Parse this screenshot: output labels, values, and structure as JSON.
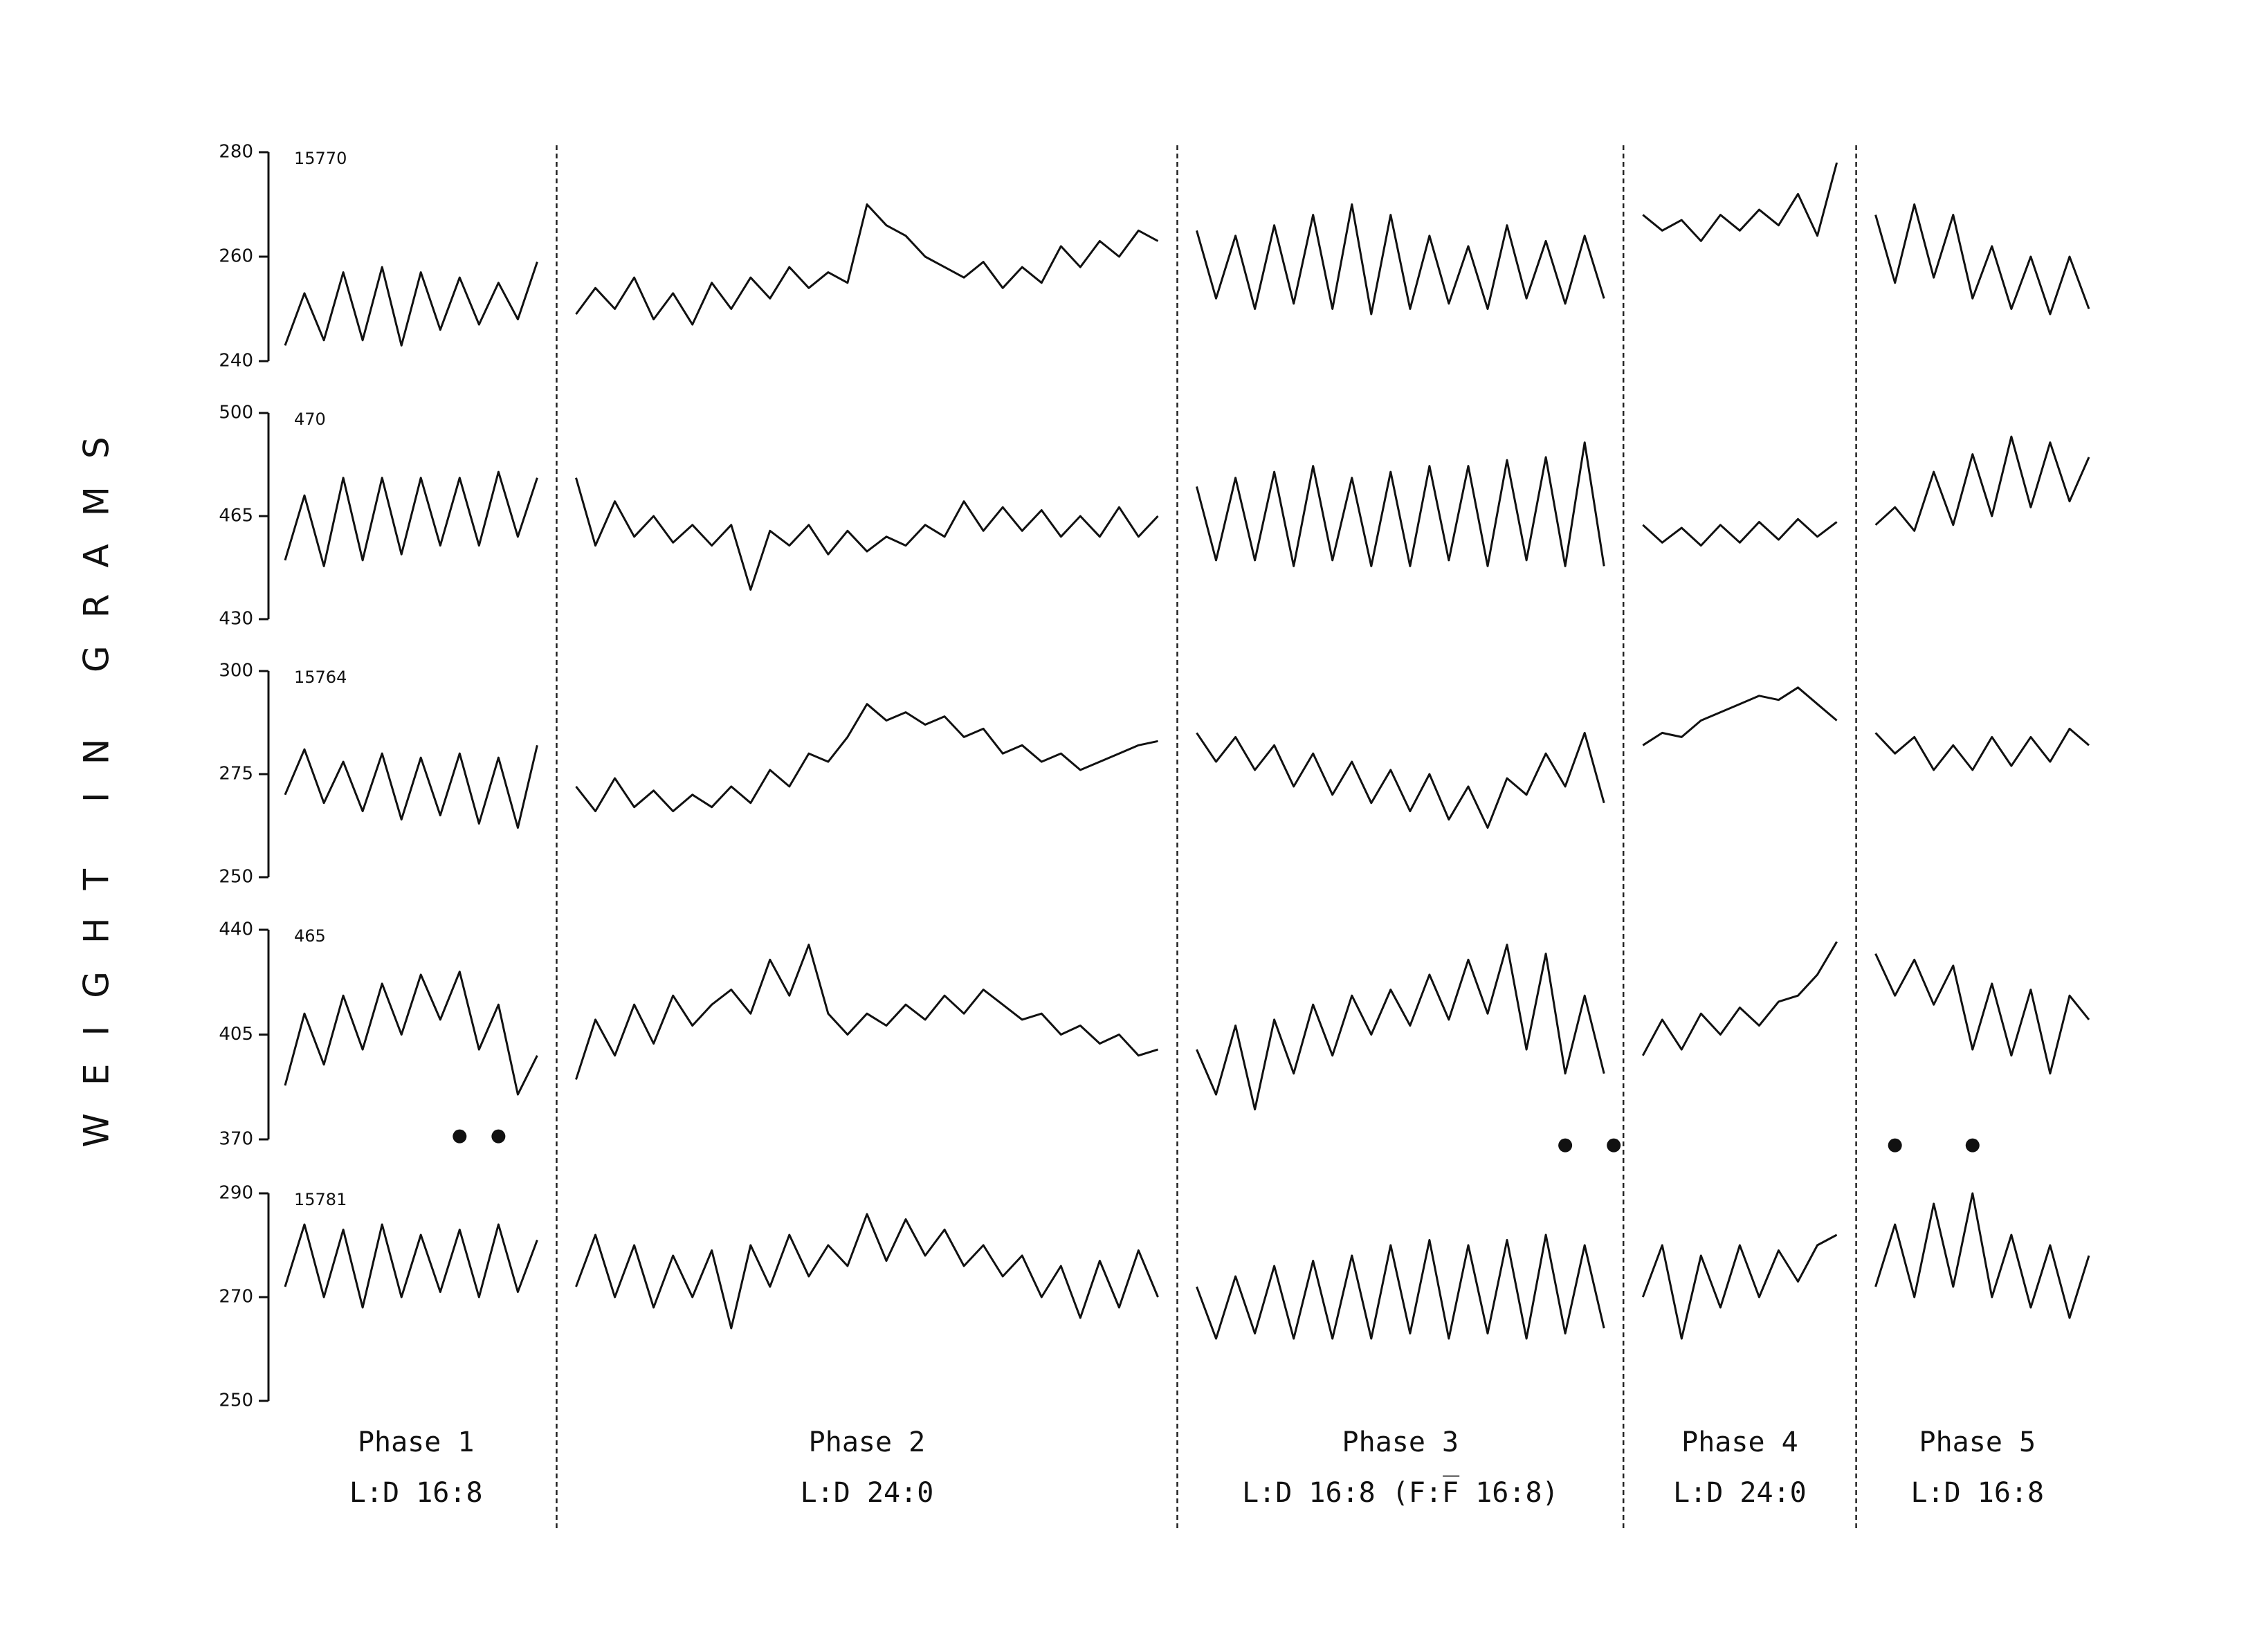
{
  "ylabel": "WEIGHT IN GRAMS",
  "xlim": [
    -0.5,
    93.5
  ],
  "boundaries": [
    14,
    46,
    69,
    81
  ],
  "phases": [
    {
      "label": "Phase 1",
      "condition": "L:D 16:8"
    },
    {
      "label": "Phase 2",
      "condition": "L:D 24:0"
    },
    {
      "label": "Phase 3",
      "condition": "L:D 16:8 (F:F̅ 16:8)"
    },
    {
      "label": "Phase 4",
      "condition": "L:D 24:0"
    },
    {
      "label": "Phase 5",
      "condition": "L:D 16:8"
    }
  ],
  "chart_data": [
    {
      "type": "line",
      "label": "15770",
      "color": "#111111",
      "ylim": [
        240,
        280
      ],
      "yticks": [
        240,
        260,
        280
      ],
      "values": [
        243,
        253,
        244,
        257,
        244,
        258,
        243,
        257,
        246,
        256,
        247,
        255,
        248,
        259,
        null,
        249,
        254,
        250,
        256,
        248,
        253,
        247,
        255,
        250,
        256,
        252,
        258,
        254,
        257,
        255,
        270,
        266,
        264,
        260,
        258,
        256,
        259,
        254,
        258,
        255,
        262,
        258,
        263,
        260,
        265,
        263,
        null,
        265,
        252,
        264,
        250,
        266,
        251,
        268,
        250,
        270,
        249,
        268,
        250,
        264,
        251,
        262,
        250,
        266,
        252,
        263,
        251,
        264,
        252,
        null,
        268,
        265,
        267,
        263,
        268,
        265,
        269,
        266,
        272,
        264,
        278,
        null,
        268,
        255,
        270,
        256,
        268,
        252,
        262,
        250,
        260,
        249,
        260,
        250
      ]
    },
    {
      "type": "line",
      "label": "470",
      "color": "#111111",
      "ylim": [
        430,
        500
      ],
      "yticks": [
        430,
        465,
        500
      ],
      "values": [
        450,
        472,
        448,
        478,
        450,
        478,
        452,
        478,
        455,
        478,
        455,
        480,
        458,
        478,
        null,
        478,
        455,
        470,
        458,
        465,
        456,
        462,
        455,
        462,
        440,
        460,
        455,
        462,
        452,
        460,
        453,
        458,
        455,
        462,
        458,
        470,
        460,
        468,
        460,
        467,
        458,
        465,
        458,
        468,
        458,
        465,
        null,
        475,
        450,
        478,
        450,
        480,
        448,
        482,
        450,
        478,
        448,
        480,
        448,
        482,
        450,
        482,
        448,
        484,
        450,
        485,
        448,
        490,
        448,
        null,
        462,
        456,
        461,
        455,
        462,
        456,
        463,
        457,
        464,
        458,
        463,
        null,
        462,
        468,
        460,
        480,
        462,
        486,
        465,
        492,
        468,
        490,
        470,
        485
      ]
    },
    {
      "type": "line",
      "label": "15764",
      "color": "#111111",
      "ylim": [
        250,
        300
      ],
      "yticks": [
        250,
        275,
        300
      ],
      "values": [
        270,
        281,
        268,
        278,
        266,
        280,
        264,
        279,
        265,
        280,
        263,
        279,
        262,
        282,
        null,
        272,
        266,
        274,
        267,
        271,
        266,
        270,
        267,
        272,
        268,
        276,
        272,
        280,
        278,
        284,
        292,
        288,
        290,
        287,
        289,
        284,
        286,
        280,
        282,
        278,
        280,
        276,
        278,
        280,
        282,
        283,
        null,
        285,
        278,
        284,
        276,
        282,
        272,
        280,
        270,
        278,
        268,
        276,
        266,
        275,
        264,
        272,
        262,
        274,
        270,
        280,
        272,
        285,
        268,
        null,
        282,
        285,
        284,
        288,
        290,
        292,
        294,
        293,
        296,
        292,
        288,
        null,
        285,
        280,
        284,
        276,
        282,
        276,
        284,
        277,
        284,
        278,
        286,
        282
      ]
    },
    {
      "type": "line",
      "label": "465",
      "color": "#111111",
      "ylim": [
        370,
        440
      ],
      "yticks": [
        370,
        405,
        440
      ],
      "values": [
        388,
        412,
        395,
        418,
        400,
        422,
        405,
        425,
        410,
        426,
        400,
        415,
        385,
        398,
        null,
        390,
        410,
        398,
        415,
        402,
        418,
        408,
        415,
        420,
        412,
        430,
        418,
        435,
        412,
        405,
        412,
        408,
        415,
        410,
        418,
        412,
        420,
        415,
        410,
        412,
        405,
        408,
        402,
        405,
        398,
        400,
        null,
        400,
        385,
        408,
        380,
        410,
        392,
        415,
        398,
        418,
        405,
        420,
        408,
        425,
        410,
        430,
        412,
        435,
        400,
        432,
        392,
        418,
        392,
        null,
        398,
        410,
        400,
        412,
        405,
        414,
        408,
        416,
        418,
        425,
        436,
        null,
        432,
        418,
        430,
        415,
        428,
        400,
        422,
        398,
        420,
        392,
        418,
        410
      ],
      "markers": [
        {
          "x": 9,
          "y": 371
        },
        {
          "x": 11,
          "y": 371
        },
        {
          "x": 66,
          "y": 368
        },
        {
          "x": 68.5,
          "y": 368
        },
        {
          "x": 83,
          "y": 368
        },
        {
          "x": 87,
          "y": 368
        }
      ]
    },
    {
      "type": "line",
      "label": "15781",
      "color": "#111111",
      "ylim": [
        250,
        290
      ],
      "yticks": [
        250,
        270,
        290
      ],
      "values": [
        272,
        284,
        270,
        283,
        268,
        284,
        270,
        282,
        271,
        283,
        270,
        284,
        271,
        281,
        null,
        272,
        282,
        270,
        280,
        268,
        278,
        270,
        279,
        264,
        280,
        272,
        282,
        274,
        280,
        276,
        286,
        277,
        285,
        278,
        283,
        276,
        280,
        274,
        278,
        270,
        276,
        266,
        277,
        268,
        279,
        270,
        null,
        272,
        262,
        274,
        263,
        276,
        262,
        277,
        262,
        278,
        262,
        280,
        263,
        281,
        262,
        280,
        263,
        281,
        262,
        282,
        263,
        280,
        264,
        null,
        270,
        280,
        262,
        278,
        268,
        280,
        270,
        279,
        273,
        280,
        282,
        null,
        272,
        284,
        270,
        288,
        272,
        290,
        270,
        282,
        268,
        280,
        266,
        278
      ]
    }
  ]
}
